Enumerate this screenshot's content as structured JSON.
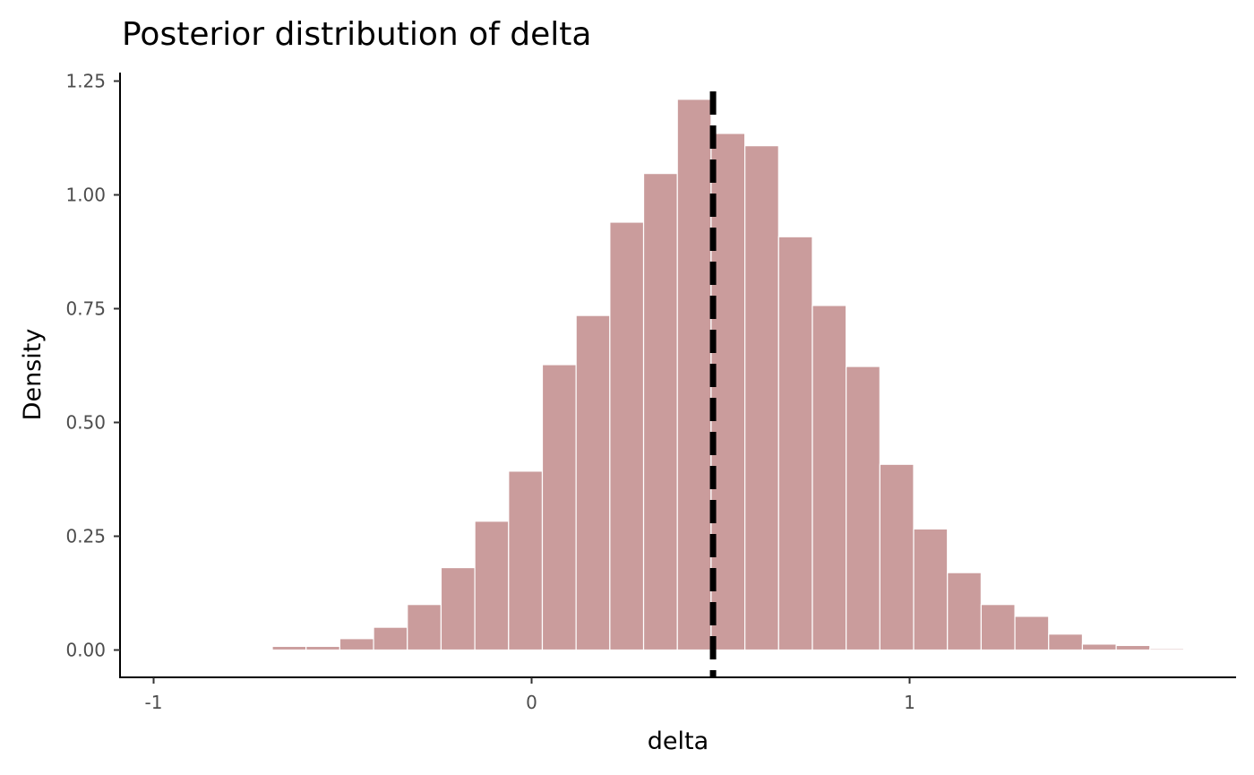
{
  "chart_data": {
    "type": "bar",
    "title": "Posterior distribution of delta",
    "xlabel": "delta",
    "ylabel": "Density",
    "xlim": [
      -1.08,
      1.9
    ],
    "ylim": [
      -0.06,
      1.27
    ],
    "x_ticks": [
      -1,
      0,
      1
    ],
    "x_tick_labels": [
      "-1",
      "0",
      "1"
    ],
    "y_ticks": [
      0,
      0.25,
      0.5,
      0.75,
      1
    ],
    "y_tick_labels": [
      "0.00",
      "0.25",
      "0.50",
      "0.75",
      "1.00",
      "1.25"
    ],
    "y_ticks_all": [
      0,
      0.25,
      0.5,
      0.75,
      1,
      1.25
    ],
    "bin_width": 0.0893,
    "bin_start": -0.686,
    "values": [
      0.008,
      0.008,
      0.025,
      0.05,
      0.1,
      0.181,
      0.283,
      0.393,
      0.627,
      0.735,
      0.94,
      1.047,
      1.21,
      1.135,
      1.108,
      0.908,
      0.757,
      0.623,
      0.408,
      0.266,
      0.17,
      0.1,
      0.074,
      0.035,
      0.013,
      0.01,
      0.003
    ],
    "reference_line": {
      "x": 0.48,
      "style": "dashed"
    },
    "bar_color": "#ca9c9c",
    "grid": false,
    "legend": "none"
  }
}
